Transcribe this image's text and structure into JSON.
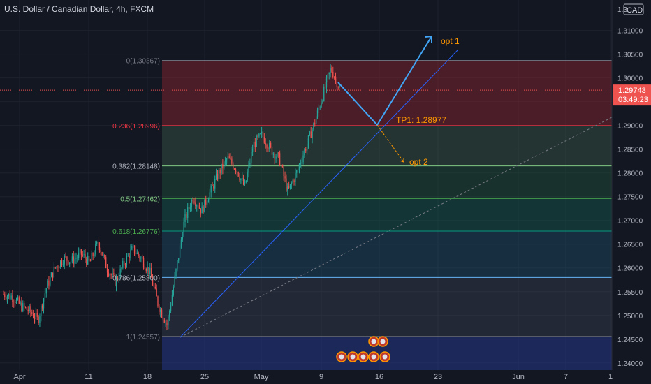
{
  "header": {
    "title": "U.S. Dollar / Canadian Dollar, 4h, FXCM",
    "currency": "CAD"
  },
  "colors": {
    "background": "#131722",
    "up": "#26a69a",
    "down": "#ef5350",
    "grid": "#1e222d",
    "text": "#b2b5be",
    "accent": "#2196f3",
    "orange": "#ff9800"
  },
  "chart_data": {
    "type": "candlestick",
    "title": "U.S. Dollar / Canadian Dollar, 4h, FXCM",
    "y_ticks": [
      "1.31000",
      "1.30500",
      "1.30000",
      "1.29500",
      "1.29000",
      "1.28500",
      "1.28000",
      "1.27500",
      "1.27000",
      "1.26500",
      "1.26000",
      "1.25500",
      "1.25000",
      "1.24500",
      "1.24000"
    ],
    "y_top_partial": "1.3",
    "ylim": [
      1.2385,
      1.3145
    ],
    "x_ticks": [
      "Apr",
      "11",
      "18",
      "25",
      "May",
      "9",
      "16",
      "23",
      "Jun",
      "7",
      "1"
    ],
    "current_price": {
      "value": "1.29743",
      "countdown": "03:49:23"
    },
    "fib_levels": [
      {
        "label": "0(1.30367)",
        "value": 1.30367
      },
      {
        "label": "0.236(1.28996)",
        "value": 1.28996
      },
      {
        "label": "0.382(1.28148)",
        "value": 1.28148
      },
      {
        "label": "0.5(1.27462)",
        "value": 1.27462
      },
      {
        "label": "0.618(1.26776)",
        "value": 1.26776
      },
      {
        "label": "0.786(1.25800)",
        "value": 1.258
      },
      {
        "label": "1(1.24557)",
        "value": 1.24557
      }
    ],
    "annotations": {
      "opt1": "opt 1",
      "opt2": "opt 2",
      "tp1": "TP1: 1.28977"
    },
    "price_path": [
      [
        1.2545,
        "Apr"
      ],
      [
        1.254,
        "2"
      ],
      [
        1.252,
        "3"
      ],
      [
        1.251,
        "4"
      ],
      [
        1.249,
        "5"
      ],
      [
        1.256,
        "6"
      ],
      [
        1.26,
        "8"
      ],
      [
        1.262,
        "9"
      ],
      [
        1.2615,
        "10"
      ],
      [
        1.263,
        "11"
      ],
      [
        1.261,
        "12"
      ],
      [
        1.2655,
        "13"
      ],
      [
        1.26,
        "14"
      ],
      [
        1.257,
        "15"
      ],
      [
        1.261,
        "16"
      ],
      [
        1.264,
        "17"
      ],
      [
        1.262,
        "18"
      ],
      [
        1.259,
        "19"
      ],
      [
        1.252,
        "20"
      ],
      [
        1.248,
        "21"
      ],
      [
        1.259,
        "22"
      ],
      [
        1.27,
        "23"
      ],
      [
        1.275,
        "24"
      ],
      [
        1.272,
        "25"
      ],
      [
        1.276,
        "26"
      ],
      [
        1.28,
        "27"
      ],
      [
        1.283,
        "28"
      ],
      [
        1.281,
        "29"
      ],
      [
        1.277,
        "30"
      ],
      [
        1.286,
        "May"
      ],
      [
        1.288,
        "3"
      ],
      [
        1.285,
        "4"
      ],
      [
        1.283,
        "5"
      ],
      [
        1.276,
        "6"
      ],
      [
        1.28,
        "7"
      ],
      [
        1.285,
        "8"
      ],
      [
        1.29,
        "9"
      ],
      [
        1.296,
        "10"
      ],
      [
        1.302,
        "11"
      ],
      [
        1.298,
        "12"
      ]
    ]
  }
}
